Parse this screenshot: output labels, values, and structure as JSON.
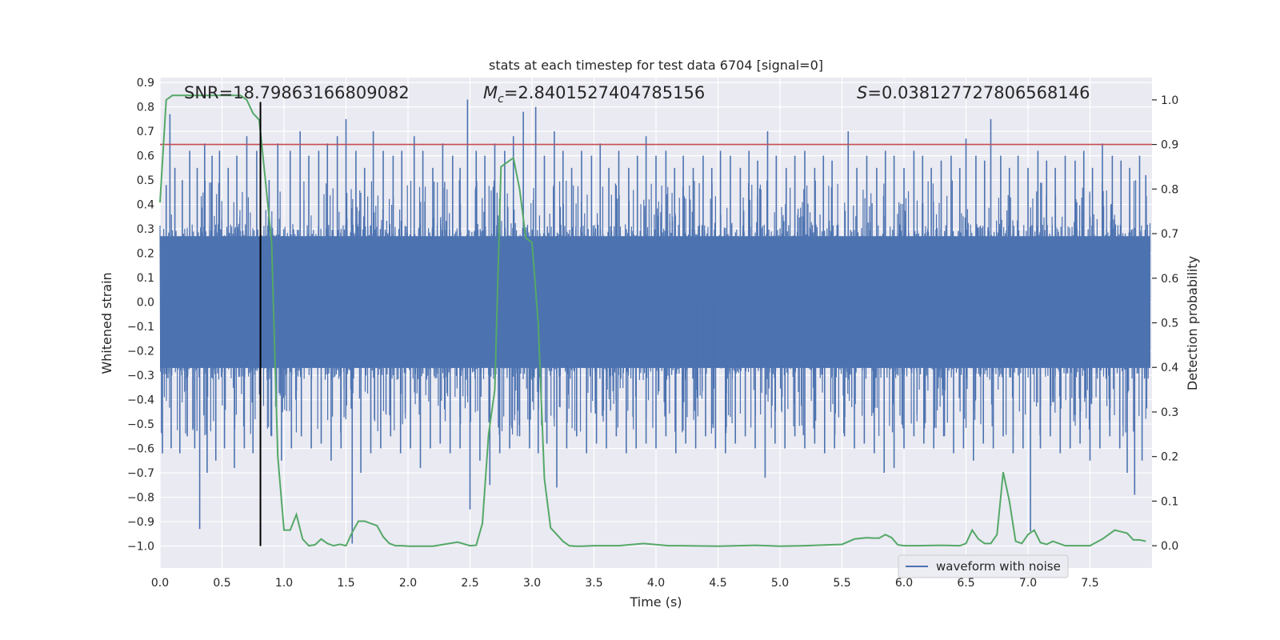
{
  "chart_data": {
    "type": "line",
    "title": "stats at each timestep for test data 6704 [signal=0]",
    "xlabel": "Time (s)",
    "ylabel_left": "Whitened strain",
    "ylabel_right": "Detection probability",
    "xlim": [
      0,
      8
    ],
    "ylim_left": [
      -1.09,
      0.92
    ],
    "ylim_right": [
      -0.05,
      1.05
    ],
    "x_ticks": [
      0.0,
      0.5,
      1.0,
      1.5,
      2.0,
      2.5,
      3.0,
      3.5,
      4.0,
      4.5,
      5.0,
      5.5,
      6.0,
      6.5,
      7.0,
      7.5
    ],
    "x_tick_labels": [
      "0.0",
      "0.5",
      "1.0",
      "1.5",
      "2.0",
      "2.5",
      "3.0",
      "3.5",
      "4.0",
      "4.5",
      "5.0",
      "5.5",
      "6.0",
      "6.5",
      "7.0",
      "7.5"
    ],
    "y_left_ticks": [
      0.9,
      0.8,
      0.7,
      0.6,
      0.5,
      0.4,
      0.3,
      0.2,
      0.1,
      0.0,
      -0.1,
      -0.2,
      -0.3,
      -0.4,
      -0.5,
      -0.6,
      -0.7,
      -0.8,
      -0.9,
      -1.0
    ],
    "y_left_tick_labels": [
      "0.9",
      "0.8",
      "0.7",
      "0.6",
      "0.5",
      "0.4",
      "0.3",
      "0.2",
      "0.1",
      "0.0",
      "−0.1",
      "−0.2",
      "−0.3",
      "−0.4",
      "−0.5",
      "−0.6",
      "−0.7",
      "−0.8",
      "−0.9",
      "−1.0"
    ],
    "y_right_ticks": [
      1.0,
      0.9,
      0.8,
      0.7,
      0.6,
      0.5,
      0.4,
      0.3,
      0.2,
      0.1,
      0.0
    ],
    "y_right_tick_labels": [
      "1.0",
      "0.9",
      "0.8",
      "0.7",
      "0.6",
      "0.5",
      "0.4",
      "0.3",
      "0.2",
      "0.1",
      "0.0"
    ],
    "annotations": {
      "snr": "SNR=18.79863166809082",
      "mc_symbol": "M",
      "mc_subscript": "c",
      "mc_value": "=2.8401527404785156",
      "s_symbol": "S",
      "s_value": "=0.038127727806568146"
    },
    "threshold": 0.9,
    "marker_time": 0.81,
    "marker_ylim": [
      -1.0,
      0.82
    ],
    "legend": {
      "label": "waveform with noise",
      "location": "lower right"
    },
    "waveform": {
      "name": "waveform with noise",
      "color": "#4c72b0",
      "core_amplitude": 0.29,
      "spikes": [
        [
          0.05,
          0.48
        ],
        [
          0.08,
          0.77
        ],
        [
          0.12,
          0.55
        ],
        [
          0.18,
          0.5
        ],
        [
          0.24,
          0.62
        ],
        [
          0.3,
          0.55
        ],
        [
          0.36,
          0.65
        ],
        [
          0.42,
          0.6
        ],
        [
          0.48,
          0.62
        ],
        [
          0.55,
          0.55
        ],
        [
          0.62,
          0.6
        ],
        [
          0.7,
          0.68
        ],
        [
          0.78,
          0.62
        ],
        [
          0.88,
          0.5
        ],
        [
          0.95,
          0.65
        ],
        [
          1.05,
          0.62
        ],
        [
          1.13,
          0.7
        ],
        [
          1.2,
          0.6
        ],
        [
          1.28,
          0.62
        ],
        [
          1.35,
          0.65
        ],
        [
          1.43,
          0.68
        ],
        [
          1.5,
          0.75
        ],
        [
          1.58,
          0.62
        ],
        [
          1.65,
          0.55
        ],
        [
          1.72,
          0.7
        ],
        [
          1.8,
          0.62
        ],
        [
          1.88,
          0.6
        ],
        [
          1.95,
          0.62
        ],
        [
          2.05,
          0.68
        ],
        [
          2.12,
          0.62
        ],
        [
          2.2,
          0.55
        ],
        [
          2.28,
          0.65
        ],
        [
          2.36,
          0.6
        ],
        [
          2.42,
          0.55
        ],
        [
          2.48,
          0.83
        ],
        [
          2.55,
          0.62
        ],
        [
          2.62,
          0.6
        ],
        [
          2.7,
          0.65
        ],
        [
          2.78,
          0.62
        ],
        [
          2.85,
          0.68
        ],
        [
          2.93,
          0.78
        ],
        [
          3.03,
          0.8
        ],
        [
          3.1,
          0.6
        ],
        [
          3.18,
          0.7
        ],
        [
          3.25,
          0.62
        ],
        [
          3.32,
          0.55
        ],
        [
          3.4,
          0.62
        ],
        [
          3.48,
          0.6
        ],
        [
          3.55,
          0.65
        ],
        [
          3.62,
          0.55
        ],
        [
          3.7,
          0.62
        ],
        [
          3.78,
          0.55
        ],
        [
          3.85,
          0.6
        ],
        [
          3.92,
          0.68
        ],
        [
          4.0,
          0.6
        ],
        [
          4.08,
          0.62
        ],
        [
          4.15,
          0.55
        ],
        [
          4.22,
          0.6
        ],
        [
          4.3,
          0.55
        ],
        [
          4.38,
          0.6
        ],
        [
          4.45,
          0.55
        ],
        [
          4.52,
          0.62
        ],
        [
          4.6,
          0.6
        ],
        [
          4.68,
          0.55
        ],
        [
          4.75,
          0.62
        ],
        [
          4.82,
          0.58
        ],
        [
          4.9,
          0.7
        ],
        [
          4.97,
          0.6
        ],
        [
          5.05,
          0.55
        ],
        [
          5.12,
          0.6
        ],
        [
          5.2,
          0.62
        ],
        [
          5.28,
          0.55
        ],
        [
          5.35,
          0.6
        ],
        [
          5.42,
          0.58
        ],
        [
          5.55,
          0.7
        ],
        [
          5.62,
          0.55
        ],
        [
          5.7,
          0.6
        ],
        [
          5.78,
          0.55
        ],
        [
          5.85,
          0.62
        ],
        [
          5.92,
          0.6
        ],
        [
          6.0,
          0.55
        ],
        [
          6.08,
          0.62
        ],
        [
          6.15,
          0.6
        ],
        [
          6.22,
          0.55
        ],
        [
          6.3,
          0.58
        ],
        [
          6.38,
          0.6
        ],
        [
          6.45,
          0.55
        ],
        [
          6.5,
          0.67
        ],
        [
          6.58,
          0.6
        ],
        [
          6.65,
          0.58
        ],
        [
          6.7,
          0.75
        ],
        [
          6.78,
          0.6
        ],
        [
          6.85,
          0.55
        ],
        [
          6.92,
          0.6
        ],
        [
          7.0,
          0.55
        ],
        [
          7.08,
          0.62
        ],
        [
          7.15,
          0.58
        ],
        [
          7.22,
          0.55
        ],
        [
          7.3,
          0.6
        ],
        [
          7.38,
          0.58
        ],
        [
          7.45,
          0.62
        ],
        [
          7.52,
          0.55
        ],
        [
          7.6,
          0.65
        ],
        [
          7.68,
          0.6
        ],
        [
          7.75,
          0.58
        ],
        [
          7.82,
          0.55
        ],
        [
          7.9,
          0.6
        ],
        [
          7.95,
          0.52
        ],
        [
          0.02,
          -0.62
        ],
        [
          0.09,
          -0.6
        ],
        [
          0.16,
          -0.62
        ],
        [
          0.22,
          -0.55
        ],
        [
          0.28,
          -0.6
        ],
        [
          0.32,
          -0.93
        ],
        [
          0.38,
          -0.7
        ],
        [
          0.45,
          -0.65
        ],
        [
          0.52,
          -0.6
        ],
        [
          0.6,
          -0.68
        ],
        [
          0.68,
          -0.6
        ],
        [
          0.75,
          -0.62
        ],
        [
          0.9,
          -0.55
        ],
        [
          0.98,
          -0.65
        ],
        [
          1.06,
          -0.6
        ],
        [
          1.14,
          -0.55
        ],
        [
          1.22,
          -0.6
        ],
        [
          1.3,
          -0.58
        ],
        [
          1.38,
          -0.65
        ],
        [
          1.46,
          -0.6
        ],
        [
          1.55,
          -0.99
        ],
        [
          1.62,
          -0.7
        ],
        [
          1.7,
          -0.62
        ],
        [
          1.78,
          -0.6
        ],
        [
          1.86,
          -0.55
        ],
        [
          1.94,
          -0.62
        ],
        [
          2.02,
          -0.6
        ],
        [
          2.1,
          -0.68
        ],
        [
          2.18,
          -0.6
        ],
        [
          2.26,
          -0.58
        ],
        [
          2.34,
          -0.62
        ],
        [
          2.42,
          -0.6
        ],
        [
          2.5,
          -0.85
        ],
        [
          2.58,
          -0.65
        ],
        [
          2.66,
          -0.75
        ],
        [
          2.74,
          -0.62
        ],
        [
          2.82,
          -0.6
        ],
        [
          2.9,
          -0.55
        ],
        [
          2.98,
          -0.6
        ],
        [
          3.05,
          -0.62
        ],
        [
          3.12,
          -0.58
        ],
        [
          3.2,
          -0.76
        ],
        [
          3.28,
          -0.6
        ],
        [
          3.36,
          -0.55
        ],
        [
          3.44,
          -0.62
        ],
        [
          3.52,
          -0.58
        ],
        [
          3.6,
          -0.6
        ],
        [
          3.68,
          -0.55
        ],
        [
          3.76,
          -0.62
        ],
        [
          3.84,
          -0.6
        ],
        [
          3.92,
          -0.58
        ],
        [
          4.0,
          -0.6
        ],
        [
          4.08,
          -0.55
        ],
        [
          4.16,
          -0.62
        ],
        [
          4.24,
          -0.58
        ],
        [
          4.32,
          -0.6
        ],
        [
          4.4,
          -0.55
        ],
        [
          4.48,
          -0.6
        ],
        [
          4.56,
          -0.62
        ],
        [
          4.64,
          -0.58
        ],
        [
          4.72,
          -0.55
        ],
        [
          4.8,
          -0.6
        ],
        [
          4.88,
          -0.72
        ],
        [
          4.96,
          -0.58
        ],
        [
          5.04,
          -0.6
        ],
        [
          5.12,
          -0.55
        ],
        [
          5.2,
          -0.6
        ],
        [
          5.28,
          -0.58
        ],
        [
          5.36,
          -0.62
        ],
        [
          5.44,
          -0.6
        ],
        [
          5.52,
          -0.55
        ],
        [
          5.6,
          -0.6
        ],
        [
          5.68,
          -0.58
        ],
        [
          5.76,
          -0.62
        ],
        [
          5.84,
          -0.7
        ],
        [
          5.92,
          -0.68
        ],
        [
          6.0,
          -0.6
        ],
        [
          6.08,
          -0.55
        ],
        [
          6.16,
          -0.58
        ],
        [
          6.24,
          -0.6
        ],
        [
          6.32,
          -0.55
        ],
        [
          6.4,
          -0.62
        ],
        [
          6.48,
          -0.6
        ],
        [
          6.56,
          -0.65
        ],
        [
          6.64,
          -0.58
        ],
        [
          6.72,
          -0.6
        ],
        [
          6.8,
          -0.55
        ],
        [
          6.88,
          -0.62
        ],
        [
          6.96,
          -0.6
        ],
        [
          7.02,
          -0.94
        ],
        [
          7.1,
          -0.6
        ],
        [
          7.18,
          -0.55
        ],
        [
          7.26,
          -0.62
        ],
        [
          7.34,
          -0.6
        ],
        [
          7.42,
          -0.58
        ],
        [
          7.5,
          -0.65
        ],
        [
          7.58,
          -0.6
        ],
        [
          7.66,
          -0.55
        ],
        [
          7.74,
          -0.6
        ],
        [
          7.8,
          -0.7
        ],
        [
          7.86,
          -0.79
        ],
        [
          7.92,
          -0.65
        ]
      ]
    },
    "probability": {
      "name": "detection probability",
      "color": "#55a868",
      "x": [
        0.0,
        0.05,
        0.1,
        0.2,
        0.3,
        0.4,
        0.5,
        0.6,
        0.65,
        0.7,
        0.75,
        0.8,
        0.85,
        0.9,
        0.95,
        1.0,
        1.05,
        1.1,
        1.15,
        1.2,
        1.25,
        1.3,
        1.35,
        1.4,
        1.45,
        1.5,
        1.55,
        1.6,
        1.65,
        1.7,
        1.75,
        1.8,
        1.85,
        1.9,
        1.95,
        2.0,
        2.2,
        2.4,
        2.5,
        2.55,
        2.6,
        2.65,
        2.7,
        2.75,
        2.8,
        2.85,
        2.9,
        2.95,
        3.0,
        3.05,
        3.1,
        3.15,
        3.2,
        3.25,
        3.3,
        3.35,
        3.4,
        3.5,
        3.7,
        3.9,
        4.1,
        4.2,
        4.5,
        4.8,
        4.9,
        5.0,
        5.2,
        5.4,
        5.5,
        5.6,
        5.7,
        5.75,
        5.8,
        5.85,
        5.9,
        5.95,
        6.0,
        6.1,
        6.3,
        6.45,
        6.5,
        6.55,
        6.6,
        6.65,
        6.7,
        6.75,
        6.8,
        6.85,
        6.9,
        6.95,
        7.0,
        7.05,
        7.1,
        7.15,
        7.2,
        7.3,
        7.4,
        7.5,
        7.6,
        7.7,
        7.8,
        7.85,
        7.9,
        7.95
      ],
      "y": [
        0.77,
        1.0,
        1.01,
        1.01,
        1.01,
        1.01,
        1.01,
        1.01,
        1.01,
        1.0,
        0.97,
        0.955,
        0.82,
        0.68,
        0.2,
        0.035,
        0.035,
        0.07,
        0.015,
        0.0,
        0.002,
        0.015,
        0.005,
        0.0,
        0.003,
        0.0,
        0.03,
        0.055,
        0.055,
        0.05,
        0.045,
        0.02,
        0.005,
        0.0,
        0.0,
        -0.001,
        -0.001,
        0.008,
        0.0,
        0.001,
        0.05,
        0.25,
        0.35,
        0.85,
        0.86,
        0.87,
        0.8,
        0.69,
        0.68,
        0.5,
        0.15,
        0.04,
        0.025,
        0.01,
        0.0,
        -0.001,
        -0.001,
        0.0,
        0.0,
        0.005,
        0.0,
        0.0,
        -0.001,
        0.001,
        0.0,
        -0.001,
        0.0,
        0.002,
        0.003,
        0.015,
        0.018,
        0.017,
        0.017,
        0.025,
        0.018,
        0.002,
        0.0,
        0.0,
        0.001,
        0.0,
        0.005,
        0.035,
        0.015,
        0.005,
        0.005,
        0.025,
        0.165,
        0.1,
        0.01,
        0.005,
        0.025,
        0.035,
        0.007,
        0.003,
        0.01,
        0.0,
        0.0,
        0.0,
        0.015,
        0.035,
        0.028,
        0.013,
        0.013,
        0.01
      ]
    },
    "threshold_color": "#c44e52",
    "marker_color": "#000000"
  }
}
